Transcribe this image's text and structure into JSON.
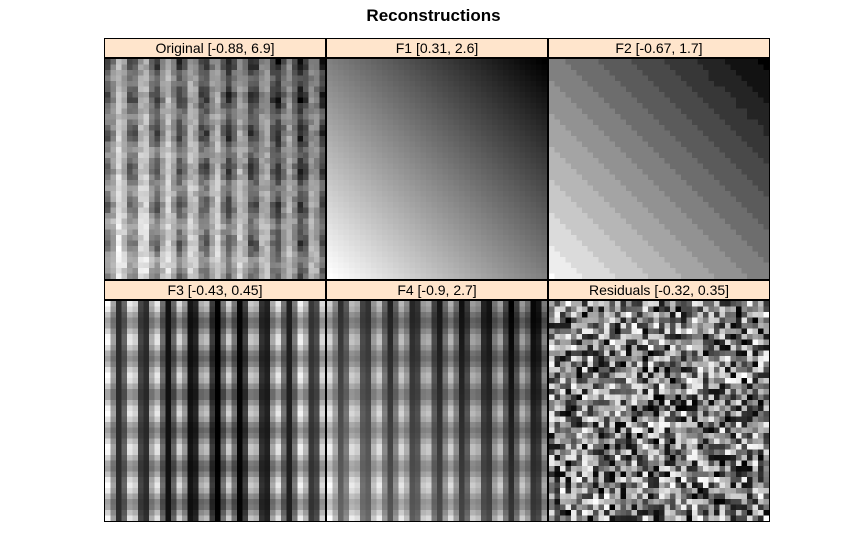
{
  "title": "Reconstructions",
  "chart_data": {
    "type": "heatmap",
    "title": "Reconstructions",
    "colormap": "grayscale",
    "colors": {
      "strip_bg": "#ffe5cc",
      "border": "#000000"
    },
    "panels": [
      {
        "id": "original",
        "label": "Original [-0.88, 6.9]",
        "range": [
          -0.88,
          6.9
        ]
      },
      {
        "id": "f1",
        "label": "F1 [0.31, 2.6]",
        "range": [
          0.31,
          2.6
        ]
      },
      {
        "id": "f2",
        "label": "F2 [-0.67, 1.7]",
        "range": [
          -0.67,
          1.7
        ]
      },
      {
        "id": "f3",
        "label": "F3 [-0.43, 0.45]",
        "range": [
          -0.43,
          0.45
        ]
      },
      {
        "id": "f4",
        "label": "F4 [-0.9, 2.7]",
        "range": [
          -0.9,
          2.7
        ]
      },
      {
        "id": "residuals",
        "label": "Residuals [-0.32, 0.35]",
        "range": [
          -0.32,
          0.35
        ]
      }
    ]
  }
}
